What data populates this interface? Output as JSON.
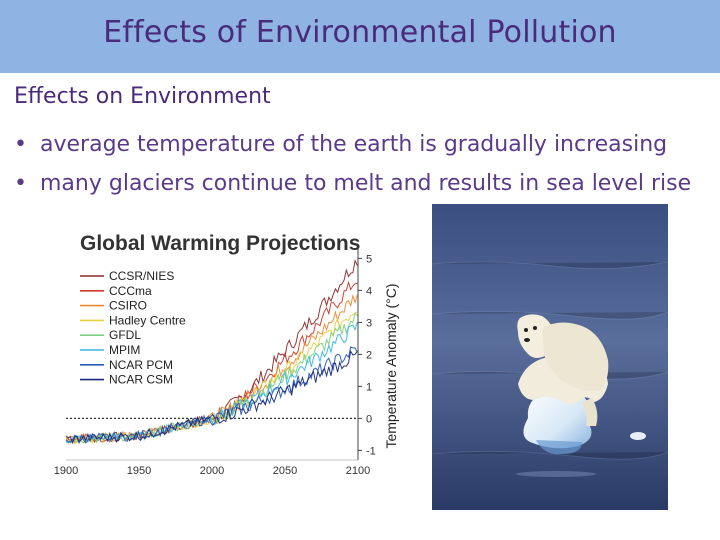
{
  "slide": {
    "title": "Effects of Environmental Pollution",
    "subtitle": "Effects on Environment",
    "bullets": [
      "average temperature of the earth is gradually increasing",
      "many glaciers continue to melt and results in sea level rise"
    ],
    "bullet_symbol": "•",
    "colors": {
      "header_bg": "#8fb4e3",
      "text": "#4a2a7a"
    }
  },
  "chart_data": {
    "type": "line",
    "title": "Global Warming Projections",
    "ylabel": "Temperature Anomaly (°C)",
    "xlabel": "",
    "xlim": [
      1900,
      2100
    ],
    "ylim": [
      -1.3,
      5.2
    ],
    "x_ticks": [
      "1900",
      "1950",
      "2000",
      "2050",
      "2100"
    ],
    "y_ticks": [
      "-1",
      "0",
      "1",
      "2",
      "3",
      "4",
      "5"
    ],
    "reference_line": 0,
    "legend_position": "top-left",
    "series": [
      {
        "name": "CCSR/NIES",
        "color": "#8b2a2a",
        "end_value": 5.0
      },
      {
        "name": "CCCma",
        "color": "#d03a2a",
        "end_value": 4.4
      },
      {
        "name": "CSIRO",
        "color": "#f08a30",
        "end_value": 3.9
      },
      {
        "name": "Hadley Centre",
        "color": "#e8d23a",
        "end_value": 3.5
      },
      {
        "name": "GFDL",
        "color": "#7fd07f",
        "end_value": 3.2
      },
      {
        "name": "MPIM",
        "color": "#3ab8e0",
        "end_value": 2.9
      },
      {
        "name": "NCAR PCM",
        "color": "#2a5ab8",
        "end_value": 2.2
      },
      {
        "name": "NCAR CSM",
        "color": "#1a2a7a",
        "end_value": 2.0
      }
    ]
  }
}
